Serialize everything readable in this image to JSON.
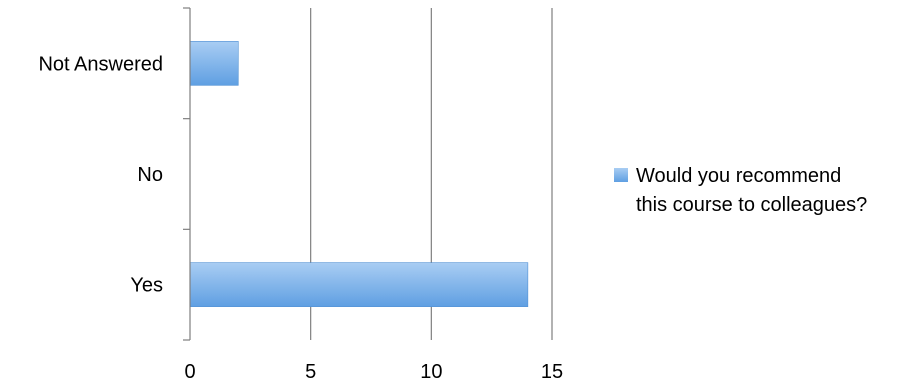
{
  "chart_data": {
    "type": "bar",
    "orientation": "horizontal",
    "categories": [
      "Not Answered",
      "No",
      "Yes"
    ],
    "series": [
      {
        "name": "Would you recommend this course to colleagues?",
        "values": [
          2,
          0,
          14
        ]
      }
    ],
    "xlim": [
      0,
      15
    ],
    "xticks": [
      "0",
      "5",
      "10",
      "15"
    ],
    "grid": "vertical",
    "legend_position": "right",
    "legend_lines": [
      "Would you recommend",
      "this course to colleagues?"
    ],
    "colors": {
      "bar_top": "#a9cdf3",
      "bar_bottom": "#5f9fe2",
      "bar_stroke": "#4f8fd4",
      "grid": "#7f7f7f"
    }
  }
}
